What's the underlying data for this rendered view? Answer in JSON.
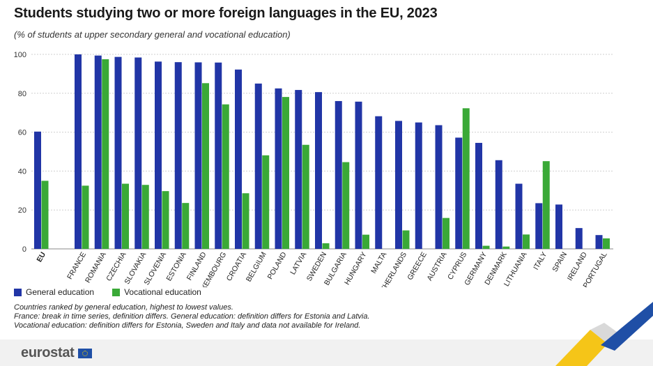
{
  "header": {
    "title": "Students studying two or more foreign languages in the EU, 2023",
    "subtitle": "(% of students at upper secondary general and vocational education)"
  },
  "colors": {
    "general": "#2135a6",
    "vocational": "#3aa937",
    "grid": "#cfcfcf",
    "swoosh_yellow": "#f5c518",
    "swoosh_blue": "#1f4fa6"
  },
  "chart_data": {
    "type": "bar",
    "categories": [
      "EU",
      "FRANCE",
      "ROMANIA",
      "CZECHIA",
      "SLOVAKIA",
      "SLOVENIA",
      "ESTONIA",
      "FINLAND",
      "LUXEMBOURG",
      "CROATIA",
      "BELGIUM",
      "POLAND",
      "LATVIA",
      "SWEDEN",
      "BULGARIA",
      "HUNGARY",
      "MALTA",
      "NETHERLANDS",
      "GREECE",
      "AUSTRIA",
      "CYPRUS",
      "GERMANY",
      "DENMARK",
      "LITHUANIA",
      "ITALY",
      "SPAIN",
      "IRELAND",
      "PORTUGAL"
    ],
    "series": [
      {
        "name": "General education",
        "values": [
          60.3,
          100,
          99.4,
          98.7,
          98.4,
          96.3,
          96.0,
          95.9,
          95.8,
          92.2,
          85.0,
          82.5,
          81.7,
          80.6,
          76.0,
          75.7,
          68.2,
          65.8,
          65.0,
          63.6,
          57.2,
          54.5,
          45.6,
          33.5,
          23.5,
          22.8,
          10.7,
          7.1
        ]
      },
      {
        "name": "Vocational education",
        "values": [
          35.0,
          32.5,
          97.5,
          33.5,
          32.9,
          29.7,
          23.6,
          85.2,
          74.3,
          28.6,
          48.1,
          78.1,
          53.5,
          2.9,
          44.6,
          7.3,
          0,
          9.5,
          0,
          15.9,
          72.3,
          1.6,
          1.2,
          7.4,
          45.1,
          0,
          0,
          5.4
        ]
      }
    ],
    "y_ticks": [
      "0",
      "20",
      "40",
      "60",
      "80",
      "100"
    ],
    "ylim": [
      0,
      100
    ],
    "grid": true,
    "legend_position": "bottom-left"
  },
  "legend": {
    "general_label": "General education",
    "vocational_label": "Vocational education"
  },
  "notes": {
    "line1": "Countries ranked by general education, highest to lowest values.",
    "line2": "France: break in time series, definition differs. General education: definition differs for Estonia and Latvia.",
    "line3": "Vocational education: definition differs for Estonia, Sweden and Italy and data not available for Ireland."
  },
  "footer": {
    "logo_text": "eurostat",
    "logo_icon": "eu-flag-icon"
  }
}
